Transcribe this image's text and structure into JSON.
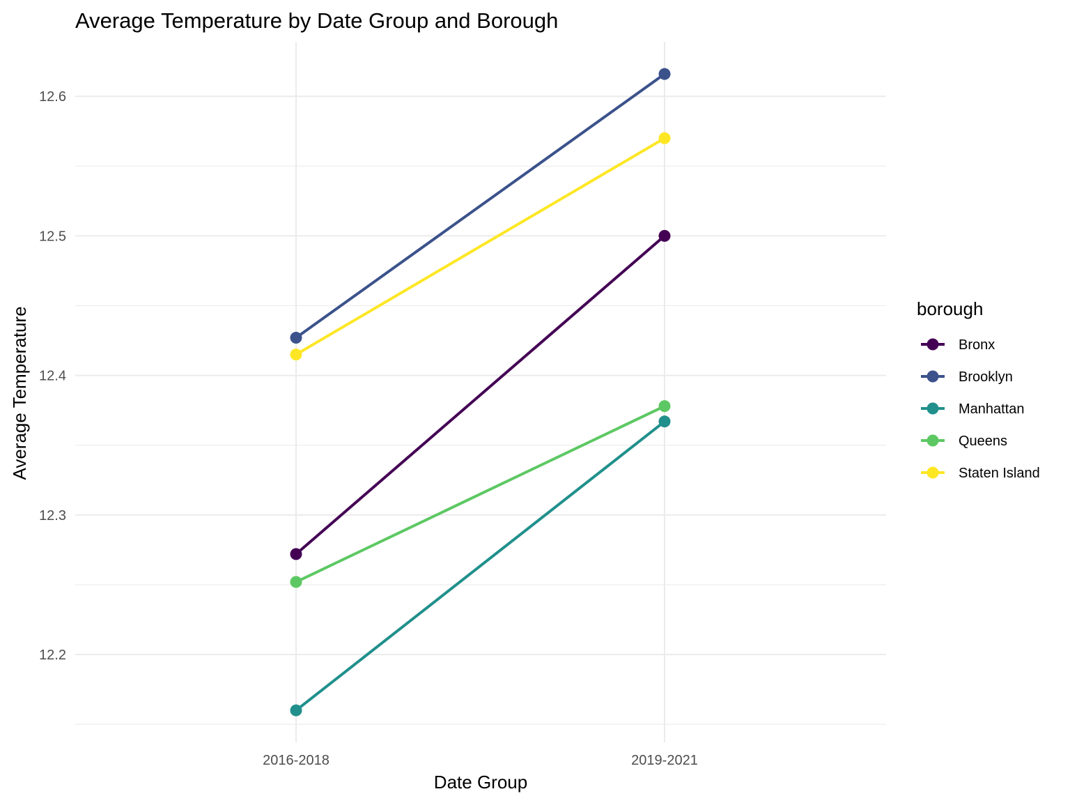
{
  "chart_data": {
    "type": "line",
    "title": "Average Temperature by Date Group and Borough",
    "xlabel": "Date Group",
    "ylabel": "Average Temperature",
    "categories": [
      "2016-2018",
      "2019-2021"
    ],
    "ylim": [
      12.15,
      12.62
    ],
    "yticks": [
      12.2,
      12.3,
      12.4,
      12.5,
      12.6
    ],
    "ytick_labels": [
      "12.2",
      "12.3",
      "12.4",
      "12.5",
      "12.6"
    ],
    "grid": true,
    "legend": {
      "title": "borough",
      "position": "right"
    },
    "series": [
      {
        "name": "Bronx",
        "values": [
          12.272,
          12.5
        ],
        "color": "#440154"
      },
      {
        "name": "Brooklyn",
        "values": [
          12.427,
          12.616
        ],
        "color": "#3B528B"
      },
      {
        "name": "Manhattan",
        "values": [
          12.16,
          12.367
        ],
        "color": "#21908C"
      },
      {
        "name": "Queens",
        "values": [
          12.252,
          12.378
        ],
        "color": "#5DC863"
      },
      {
        "name": "Staten Island",
        "values": [
          12.415,
          12.57
        ],
        "color": "#FDE725"
      }
    ]
  }
}
